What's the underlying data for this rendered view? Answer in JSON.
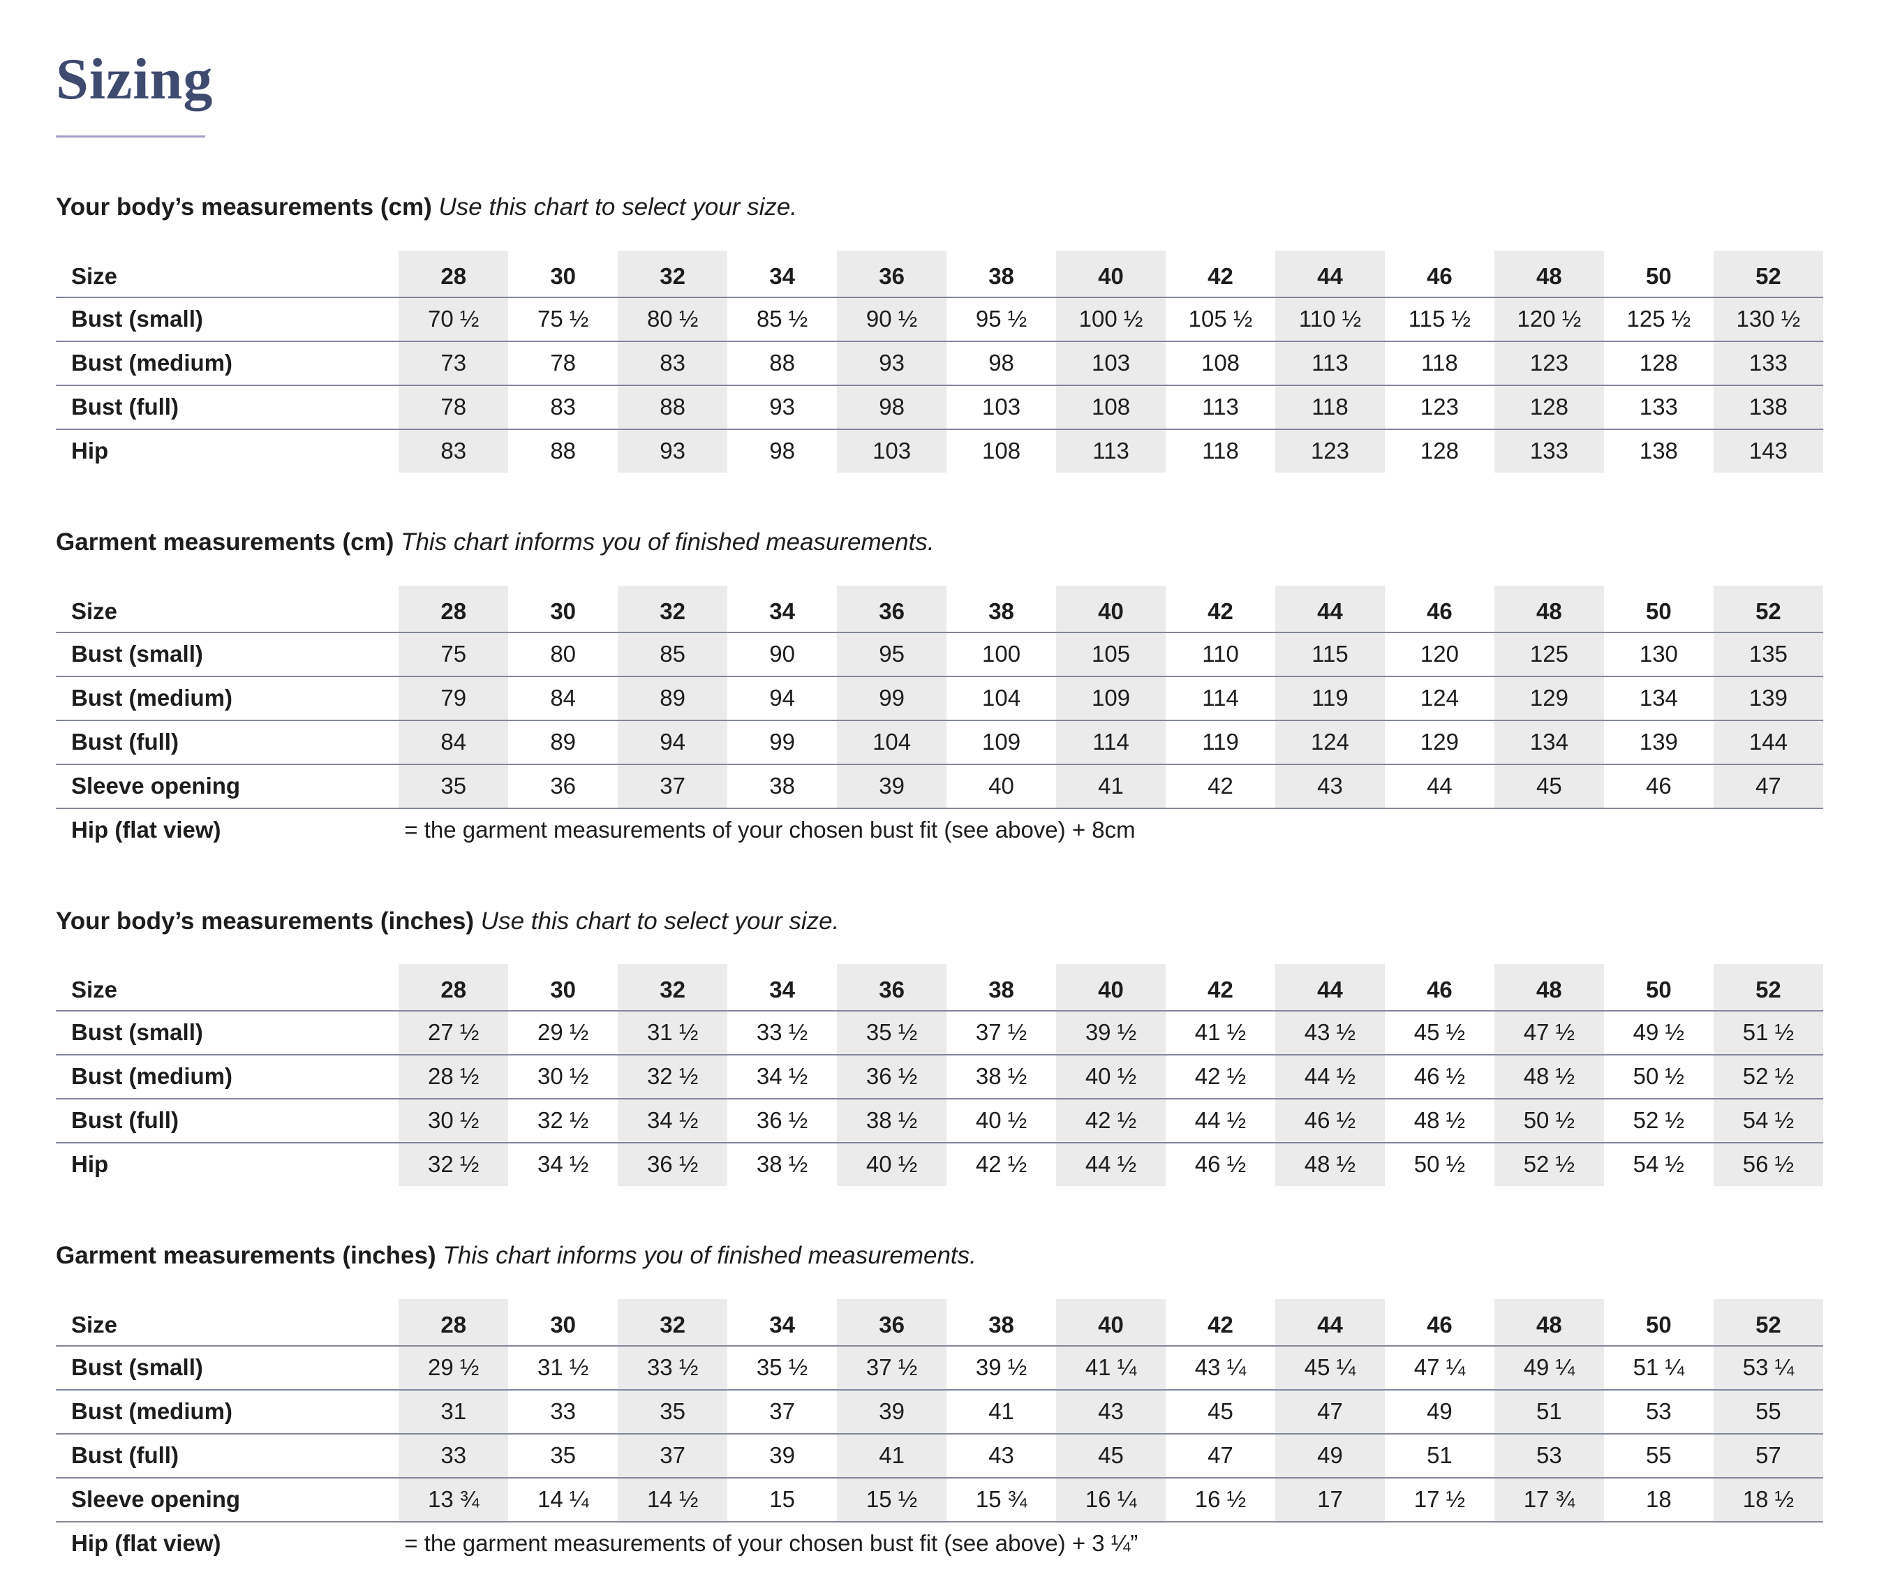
{
  "page": {
    "title": "Sizing"
  },
  "tables": [
    {
      "heading": "Your body’s measurements (cm)",
      "subheading": "Use this chart to select your size.",
      "size_label": "Size",
      "sizes": [
        "28",
        "30",
        "32",
        "34",
        "36",
        "38",
        "40",
        "42",
        "44",
        "46",
        "48",
        "50",
        "52"
      ],
      "rows": [
        {
          "label": "Bust (small)",
          "values": [
            "70 ½",
            "75 ½",
            "80 ½",
            "85 ½",
            "90 ½",
            "95 ½",
            "100 ½",
            "105 ½",
            "110 ½",
            "115 ½",
            "120 ½",
            "125 ½",
            "130 ½"
          ]
        },
        {
          "label": "Bust (medium)",
          "values": [
            "73",
            "78",
            "83",
            "88",
            "93",
            "98",
            "103",
            "108",
            "113",
            "118",
            "123",
            "128",
            "133"
          ]
        },
        {
          "label": "Bust (full)",
          "values": [
            "78",
            "83",
            "88",
            "93",
            "98",
            "103",
            "108",
            "113",
            "118",
            "123",
            "128",
            "133",
            "138"
          ]
        },
        {
          "label": "Hip",
          "values": [
            "83",
            "88",
            "93",
            "98",
            "103",
            "108",
            "113",
            "118",
            "123",
            "128",
            "133",
            "138",
            "143"
          ]
        }
      ],
      "note": null
    },
    {
      "heading": "Garment measurements (cm)",
      "subheading": "This chart informs you of finished measurements.",
      "size_label": "Size",
      "sizes": [
        "28",
        "30",
        "32",
        "34",
        "36",
        "38",
        "40",
        "42",
        "44",
        "46",
        "48",
        "50",
        "52"
      ],
      "rows": [
        {
          "label": "Bust (small)",
          "values": [
            "75",
            "80",
            "85",
            "90",
            "95",
            "100",
            "105",
            "110",
            "115",
            "120",
            "125",
            "130",
            "135"
          ]
        },
        {
          "label": "Bust (medium)",
          "values": [
            "79",
            "84",
            "89",
            "94",
            "99",
            "104",
            "109",
            "114",
            "119",
            "124",
            "129",
            "134",
            "139"
          ]
        },
        {
          "label": "Bust (full)",
          "values": [
            "84",
            "89",
            "94",
            "99",
            "104",
            "109",
            "114",
            "119",
            "124",
            "129",
            "134",
            "139",
            "144"
          ]
        },
        {
          "label": "Sleeve opening",
          "values": [
            "35",
            "36",
            "37",
            "38",
            "39",
            "40",
            "41",
            "42",
            "43",
            "44",
            "45",
            "46",
            "47"
          ]
        }
      ],
      "note": {
        "label": "Hip (flat view)",
        "text": "= the garment measurements of your chosen bust fit (see above) + 8cm"
      }
    },
    {
      "heading": "Your body’s measurements (inches)",
      "subheading": "Use this chart to select your size.",
      "size_label": "Size",
      "sizes": [
        "28",
        "30",
        "32",
        "34",
        "36",
        "38",
        "40",
        "42",
        "44",
        "46",
        "48",
        "50",
        "52"
      ],
      "rows": [
        {
          "label": "Bust (small)",
          "values": [
            "27 ½",
            "29 ½",
            "31 ½",
            "33 ½",
            "35 ½",
            "37 ½",
            "39 ½",
            "41 ½",
            "43 ½",
            "45 ½",
            "47 ½",
            "49 ½",
            "51 ½"
          ]
        },
        {
          "label": "Bust (medium)",
          "values": [
            "28 ½",
            "30 ½",
            "32 ½",
            "34 ½",
            "36 ½",
            "38 ½",
            "40 ½",
            "42 ½",
            "44 ½",
            "46 ½",
            "48 ½",
            "50 ½",
            "52 ½"
          ]
        },
        {
          "label": "Bust (full)",
          "values": [
            "30 ½",
            "32 ½",
            "34 ½",
            "36 ½",
            "38 ½",
            "40 ½",
            "42 ½",
            "44 ½",
            "46 ½",
            "48 ½",
            "50 ½",
            "52 ½",
            "54 ½"
          ]
        },
        {
          "label": "Hip",
          "values": [
            "32 ½",
            "34 ½",
            "36 ½",
            "38 ½",
            "40 ½",
            "42 ½",
            "44 ½",
            "46 ½",
            "48 ½",
            "50 ½",
            "52 ½",
            "54 ½",
            "56 ½"
          ]
        }
      ],
      "note": null
    },
    {
      "heading": "Garment measurements (inches)",
      "subheading": "This chart informs you of finished measurements.",
      "size_label": "Size",
      "sizes": [
        "28",
        "30",
        "32",
        "34",
        "36",
        "38",
        "40",
        "42",
        "44",
        "46",
        "48",
        "50",
        "52"
      ],
      "rows": [
        {
          "label": "Bust (small)",
          "values": [
            "29 ½",
            "31 ½",
            "33 ½",
            "35 ½",
            "37 ½",
            "39 ½",
            "41 ¼",
            "43 ¼",
            "45 ¼",
            "47 ¼",
            "49 ¼",
            "51 ¼",
            "53 ¼"
          ]
        },
        {
          "label": "Bust (medium)",
          "values": [
            "31",
            "33",
            "35",
            "37",
            "39",
            "41",
            "43",
            "45",
            "47",
            "49",
            "51",
            "53",
            "55"
          ]
        },
        {
          "label": "Bust (full)",
          "values": [
            "33",
            "35",
            "37",
            "39",
            "41",
            "43",
            "45",
            "47",
            "49",
            "51",
            "53",
            "55",
            "57"
          ]
        },
        {
          "label": "Sleeve opening",
          "values": [
            "13 ¾",
            "14 ¼",
            "14 ½",
            "15",
            "15 ½",
            "15 ¾",
            "16 ¼",
            "16 ½",
            "17",
            "17 ½",
            "17 ¾",
            "18",
            "18 ½"
          ]
        }
      ],
      "note": {
        "label": "Hip (flat view)",
        "text": "= the garment measurements of your chosen bust fit (see above) + 3 ¼”"
      }
    }
  ]
}
